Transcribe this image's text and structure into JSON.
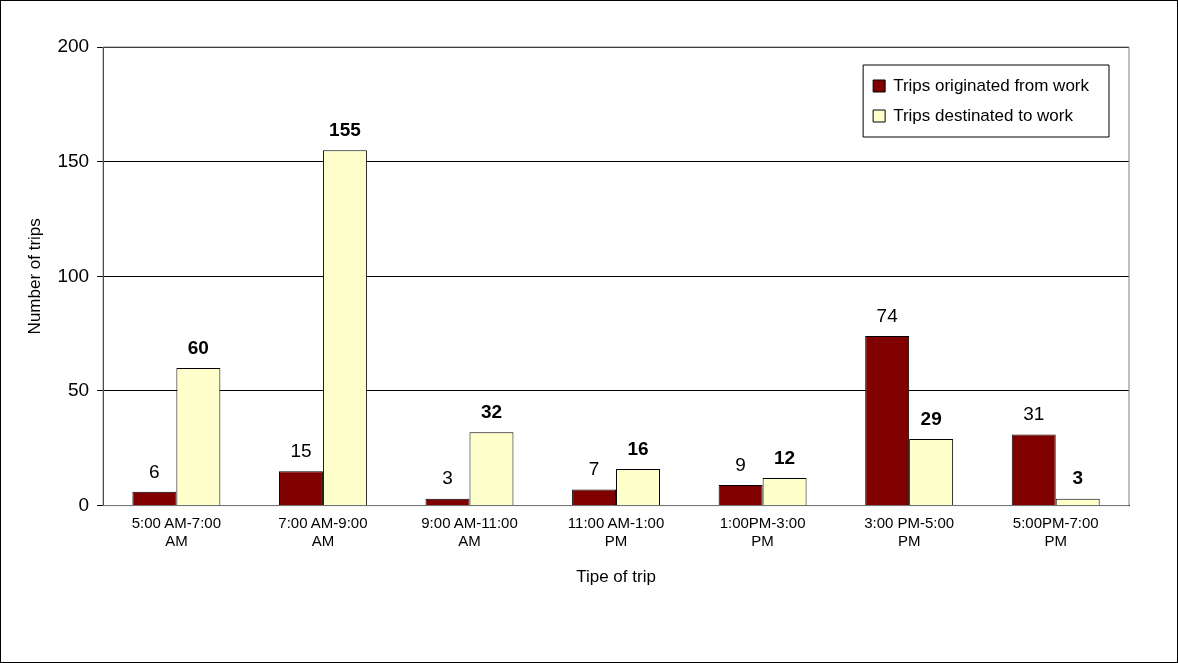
{
  "chart_data": {
    "type": "bar",
    "xlabel": "Tipe of trip",
    "ylabel": "Number of trips",
    "categories": [
      "5:00 AM-7:00 AM",
      "7:00 AM-9:00 AM",
      "9:00 AM-11:00 AM",
      "11:00 AM-1:00 PM",
      "1:00PM-3:00 PM",
      "3:00 PM-5:00 PM",
      "5:00PM-7:00 PM"
    ],
    "series": [
      {
        "name": "Trips originated from work",
        "color": "#800000",
        "values": [
          6,
          15,
          3,
          7,
          9,
          74,
          31
        ]
      },
      {
        "name": "Trips destinated to work",
        "color": "#ffffcc",
        "values": [
          60,
          155,
          32,
          16,
          12,
          29,
          3
        ]
      }
    ],
    "ylim": [
      0,
      200
    ],
    "yticks": [
      0,
      50,
      100,
      150,
      200
    ],
    "grid": "y",
    "legend": "top right",
    "data_labels": true
  }
}
